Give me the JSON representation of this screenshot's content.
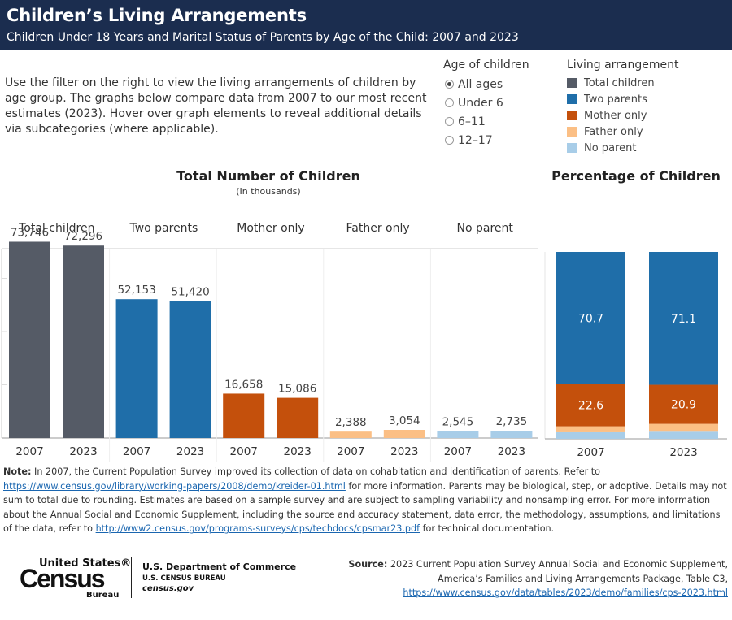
{
  "header": {
    "title": "Children’s Living Arrangements",
    "subtitle": "Children Under 18 Years and Marital Status of Parents by Age of the Child: 2007 and 2023"
  },
  "intro": "Use the filter on the right to view the living arrangements of children by age group. The graphs below compare data from 2007 to our most recent estimates (2023). Hover over graph elements to reveal additional details via subcategories (where applicable).",
  "age_filter": {
    "title": "Age of children",
    "options": [
      "All ages",
      "Under 6",
      "6–11",
      "12–17"
    ],
    "selected": "All ages"
  },
  "legend": {
    "title": "Living arrangement",
    "items": [
      {
        "label": "Total children",
        "color": "#555b66"
      },
      {
        "label": "Two parents",
        "color": "#1f6ea9"
      },
      {
        "label": "Mother only",
        "color": "#c4500c"
      },
      {
        "label": "Father only",
        "color": "#fbbf85"
      },
      {
        "label": "No parent",
        "color": "#a8cde8"
      }
    ]
  },
  "chart_data": [
    {
      "type": "bar",
      "title": "Total Number of Children",
      "subtitle": "(In thousands)",
      "groups": [
        "Total children",
        "Two parents",
        "Mother only",
        "Father only",
        "No parent"
      ],
      "categories": [
        "2007",
        "2023"
      ],
      "series": [
        {
          "name": "Total children",
          "color": "#555b66",
          "values": [
            73746,
            72296
          ],
          "labels": [
            "73,746",
            "72,296"
          ]
        },
        {
          "name": "Two parents",
          "color": "#1f6ea9",
          "values": [
            52153,
            51420
          ],
          "labels": [
            "52,153",
            "51,420"
          ]
        },
        {
          "name": "Mother only",
          "color": "#c4500c",
          "values": [
            16658,
            15086
          ],
          "labels": [
            "16,658",
            "15,086"
          ]
        },
        {
          "name": "Father only",
          "color": "#fbbf85",
          "values": [
            2388,
            3054
          ],
          "labels": [
            "2,388",
            "3,054"
          ]
        },
        {
          "name": "No parent",
          "color": "#a8cde8",
          "values": [
            2545,
            2735
          ],
          "labels": [
            "2,545",
            "2,735"
          ]
        }
      ],
      "ylim": [
        0,
        80000
      ]
    },
    {
      "type": "bar",
      "stacked": true,
      "title": "Percentage of Children",
      "categories": [
        "2007",
        "2023"
      ],
      "series": [
        {
          "name": "Two parents",
          "color": "#1f6ea9",
          "values": [
            70.7,
            71.1
          ],
          "labels": [
            "70.7",
            "71.1"
          ]
        },
        {
          "name": "Mother only",
          "color": "#c4500c",
          "values": [
            22.6,
            20.9
          ],
          "labels": [
            "22.6",
            "20.9"
          ]
        },
        {
          "name": "Father only",
          "color": "#fbbf85",
          "values": [
            3.2,
            4.2
          ]
        },
        {
          "name": "No parent",
          "color": "#a8cde8",
          "values": [
            3.5,
            3.8
          ]
        }
      ],
      "ylim": [
        0,
        100
      ]
    }
  ],
  "note": {
    "label": "Note:",
    "text1": " In 2007, the Current Population Survey improved its collection of data on cohabitation and identification of parents. Refer to ",
    "link1": "https://www.census.gov/library/working-papers/2008/demo/kreider-01.html",
    "text2": " for more information. Parents may be biological, step, or adoptive. Details may not sum to total due to rounding. Estimates are based on a sample survey and are subject to sampling variability and nonsampling error. For more information about the Annual Social and Economic Supplement, including the source and accuracy statement, data error, the methodology, assumptions, and limitations of the data, refer to ",
    "link2": "http://www2.census.gov/programs-surveys/cps/techdocs/cpsmar23.pdf",
    "text3": " for technical documentation."
  },
  "logo": {
    "line1": "United States®",
    "line2": "Census",
    "line3": "Bureau"
  },
  "department": {
    "name": "U.S. Department of Commerce",
    "bureau": "U.S. CENSUS BUREAU",
    "site": "census.gov"
  },
  "source": {
    "label": "Source:",
    "text": " 2023 Current Population Survey Annual Social and Economic Supplement, America’s Families and Living Arrangements Package, Table C3,",
    "link": "https://www.census.gov/data/tables/2023/demo/families/cps-2023.html"
  }
}
